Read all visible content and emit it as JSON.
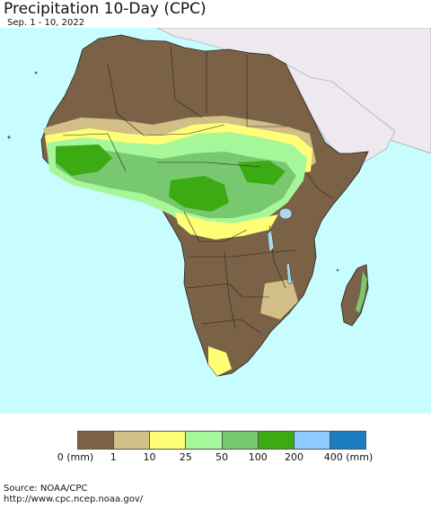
{
  "title": "Precipitation 10-Day (CPC)",
  "subtitle": "Sep. 1 - 10, 2022",
  "legend": {
    "colors": [
      "#7b6246",
      "#d2bf87",
      "#ffff77",
      "#a6f79a",
      "#78c870",
      "#3caa12",
      "#8ccaff",
      "#1a7ec0"
    ],
    "labels": [
      "0 (mm)",
      "1",
      "10",
      "25",
      "50",
      "100",
      "200",
      "400 (mm)"
    ]
  },
  "map_colors": {
    "ocean": "#c8fdff",
    "dry_land": "#7b6246",
    "outside_region": "#eee9ef",
    "lake": "#a8d8ea"
  },
  "source": {
    "line1": "Source: NOAA/CPC",
    "line2": "http://www.cpc.ncep.noaa.gov/"
  }
}
